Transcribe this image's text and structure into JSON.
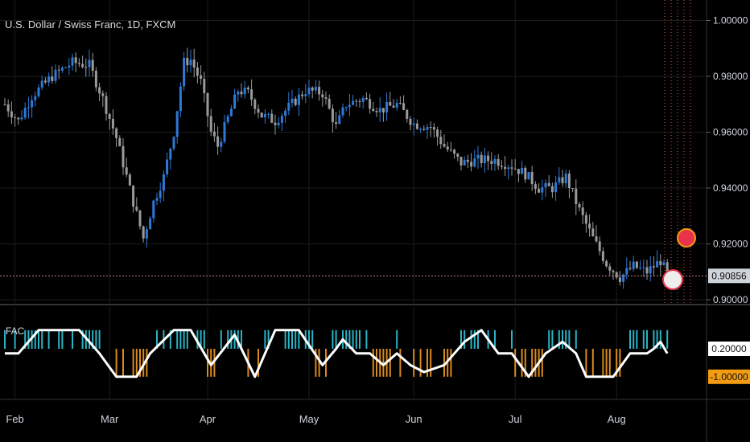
{
  "window": {
    "title": "U.S. Dollar / Swiss Franc, 1D, FXCM"
  },
  "indicator": {
    "label": "FAC"
  },
  "colors": {
    "background": "#000000",
    "candle_up": "#2f78d6",
    "candle_down": "#9a9a9a",
    "osc_up": "#2ab3c4",
    "osc_down": "#d98a1f",
    "osc_line": "#ffffff",
    "current_price_tag": "#cfd3dc",
    "osc_high_tag": "#ffffff",
    "osc_low_tag": "#f39c12",
    "grid": "#1c1c1c",
    "future_marker": "#e05a4e"
  },
  "chart_data": [
    {
      "type": "candlestick",
      "title": "U.S. Dollar / Swiss Franc, 1D, FXCM",
      "x_ticks": [
        "Feb",
        "Mar",
        "Apr",
        "May",
        "Jun",
        "Jul",
        "Aug"
      ],
      "y_ticks": [
        "1.00000",
        "0.98000",
        "0.96000",
        "0.94000",
        "0.92000",
        "0.90856",
        "0.90000"
      ],
      "ylim": [
        0.897,
        1.0
      ],
      "current_price": 0.90856,
      "grid": true,
      "close_path": [
        {
          "day": 0,
          "v": 0.97
        },
        {
          "day": 4,
          "v": 0.964
        },
        {
          "day": 8,
          "v": 0.973
        },
        {
          "day": 14,
          "v": 0.98
        },
        {
          "day": 20,
          "v": 0.985
        },
        {
          "day": 25,
          "v": 0.984
        },
        {
          "day": 29,
          "v": 0.972
        },
        {
          "day": 33,
          "v": 0.958
        },
        {
          "day": 38,
          "v": 0.935
        },
        {
          "day": 41,
          "v": 0.922
        },
        {
          "day": 44,
          "v": 0.935
        },
        {
          "day": 47,
          "v": 0.944
        },
        {
          "day": 50,
          "v": 0.96
        },
        {
          "day": 53,
          "v": 0.985
        },
        {
          "day": 55,
          "v": 0.986
        },
        {
          "day": 58,
          "v": 0.978
        },
        {
          "day": 61,
          "v": 0.96
        },
        {
          "day": 63,
          "v": 0.955
        },
        {
          "day": 66,
          "v": 0.965
        },
        {
          "day": 69,
          "v": 0.975
        },
        {
          "day": 72,
          "v": 0.974
        },
        {
          "day": 76,
          "v": 0.966
        },
        {
          "day": 80,
          "v": 0.964
        },
        {
          "day": 84,
          "v": 0.969
        },
        {
          "day": 89,
          "v": 0.975
        },
        {
          "day": 94,
          "v": 0.974
        },
        {
          "day": 98,
          "v": 0.962
        },
        {
          "day": 101,
          "v": 0.97
        },
        {
          "day": 106,
          "v": 0.972
        },
        {
          "day": 111,
          "v": 0.968
        },
        {
          "day": 116,
          "v": 0.97
        },
        {
          "day": 121,
          "v": 0.963
        },
        {
          "day": 126,
          "v": 0.962
        },
        {
          "day": 130,
          "v": 0.955
        },
        {
          "day": 135,
          "v": 0.949
        },
        {
          "day": 140,
          "v": 0.95
        },
        {
          "day": 145,
          "v": 0.95
        },
        {
          "day": 150,
          "v": 0.948
        },
        {
          "day": 154,
          "v": 0.945
        },
        {
          "day": 158,
          "v": 0.94
        },
        {
          "day": 162,
          "v": 0.94
        },
        {
          "day": 166,
          "v": 0.944
        },
        {
          "day": 170,
          "v": 0.932
        },
        {
          "day": 174,
          "v": 0.922
        },
        {
          "day": 178,
          "v": 0.913
        },
        {
          "day": 182,
          "v": 0.908
        },
        {
          "day": 186,
          "v": 0.912
        },
        {
          "day": 190,
          "v": 0.91
        },
        {
          "day": 194,
          "v": 0.914
        },
        {
          "day": 196,
          "v": 0.909
        }
      ]
    },
    {
      "type": "oscillator",
      "title": "FAC",
      "y_ticks": [
        "0.20000",
        "-1.00000"
      ],
      "line_path": [
        {
          "day": 0,
          "v": 0.0
        },
        {
          "day": 4,
          "v": 0.0
        },
        {
          "day": 10,
          "v": 1.0
        },
        {
          "day": 22,
          "v": 1.0
        },
        {
          "day": 28,
          "v": 0.0
        },
        {
          "day": 33,
          "v": -1.0
        },
        {
          "day": 39,
          "v": -1.0
        },
        {
          "day": 43,
          "v": 0.0
        },
        {
          "day": 50,
          "v": 1.0
        },
        {
          "day": 55,
          "v": 1.0
        },
        {
          "day": 61,
          "v": -0.5
        },
        {
          "day": 68,
          "v": 0.8
        },
        {
          "day": 74,
          "v": -1.0
        },
        {
          "day": 80,
          "v": 1.0
        },
        {
          "day": 87,
          "v": 1.0
        },
        {
          "day": 94,
          "v": -0.5
        },
        {
          "day": 98,
          "v": 0.2
        },
        {
          "day": 100,
          "v": 0.6
        },
        {
          "day": 104,
          "v": 0.0
        },
        {
          "day": 108,
          "v": 0.0
        },
        {
          "day": 112,
          "v": -0.5
        },
        {
          "day": 116,
          "v": 0.0
        },
        {
          "day": 120,
          "v": -0.5
        },
        {
          "day": 124,
          "v": -0.8
        },
        {
          "day": 130,
          "v": -0.5
        },
        {
          "day": 136,
          "v": 0.5
        },
        {
          "day": 141,
          "v": 1.0
        },
        {
          "day": 146,
          "v": 0.0
        },
        {
          "day": 150,
          "v": 0.0
        },
        {
          "day": 155,
          "v": -1.0
        },
        {
          "day": 160,
          "v": 0.0
        },
        {
          "day": 165,
          "v": 0.5
        },
        {
          "day": 169,
          "v": 0.0
        },
        {
          "day": 172,
          "v": -1.0
        },
        {
          "day": 180,
          "v": -1.0
        },
        {
          "day": 185,
          "v": 0.0
        },
        {
          "day": 190,
          "v": 0.0
        },
        {
          "day": 192,
          "v": 0.2
        },
        {
          "day": 194,
          "v": 0.5
        },
        {
          "day": 196,
          "v": 0.0
        }
      ]
    }
  ]
}
